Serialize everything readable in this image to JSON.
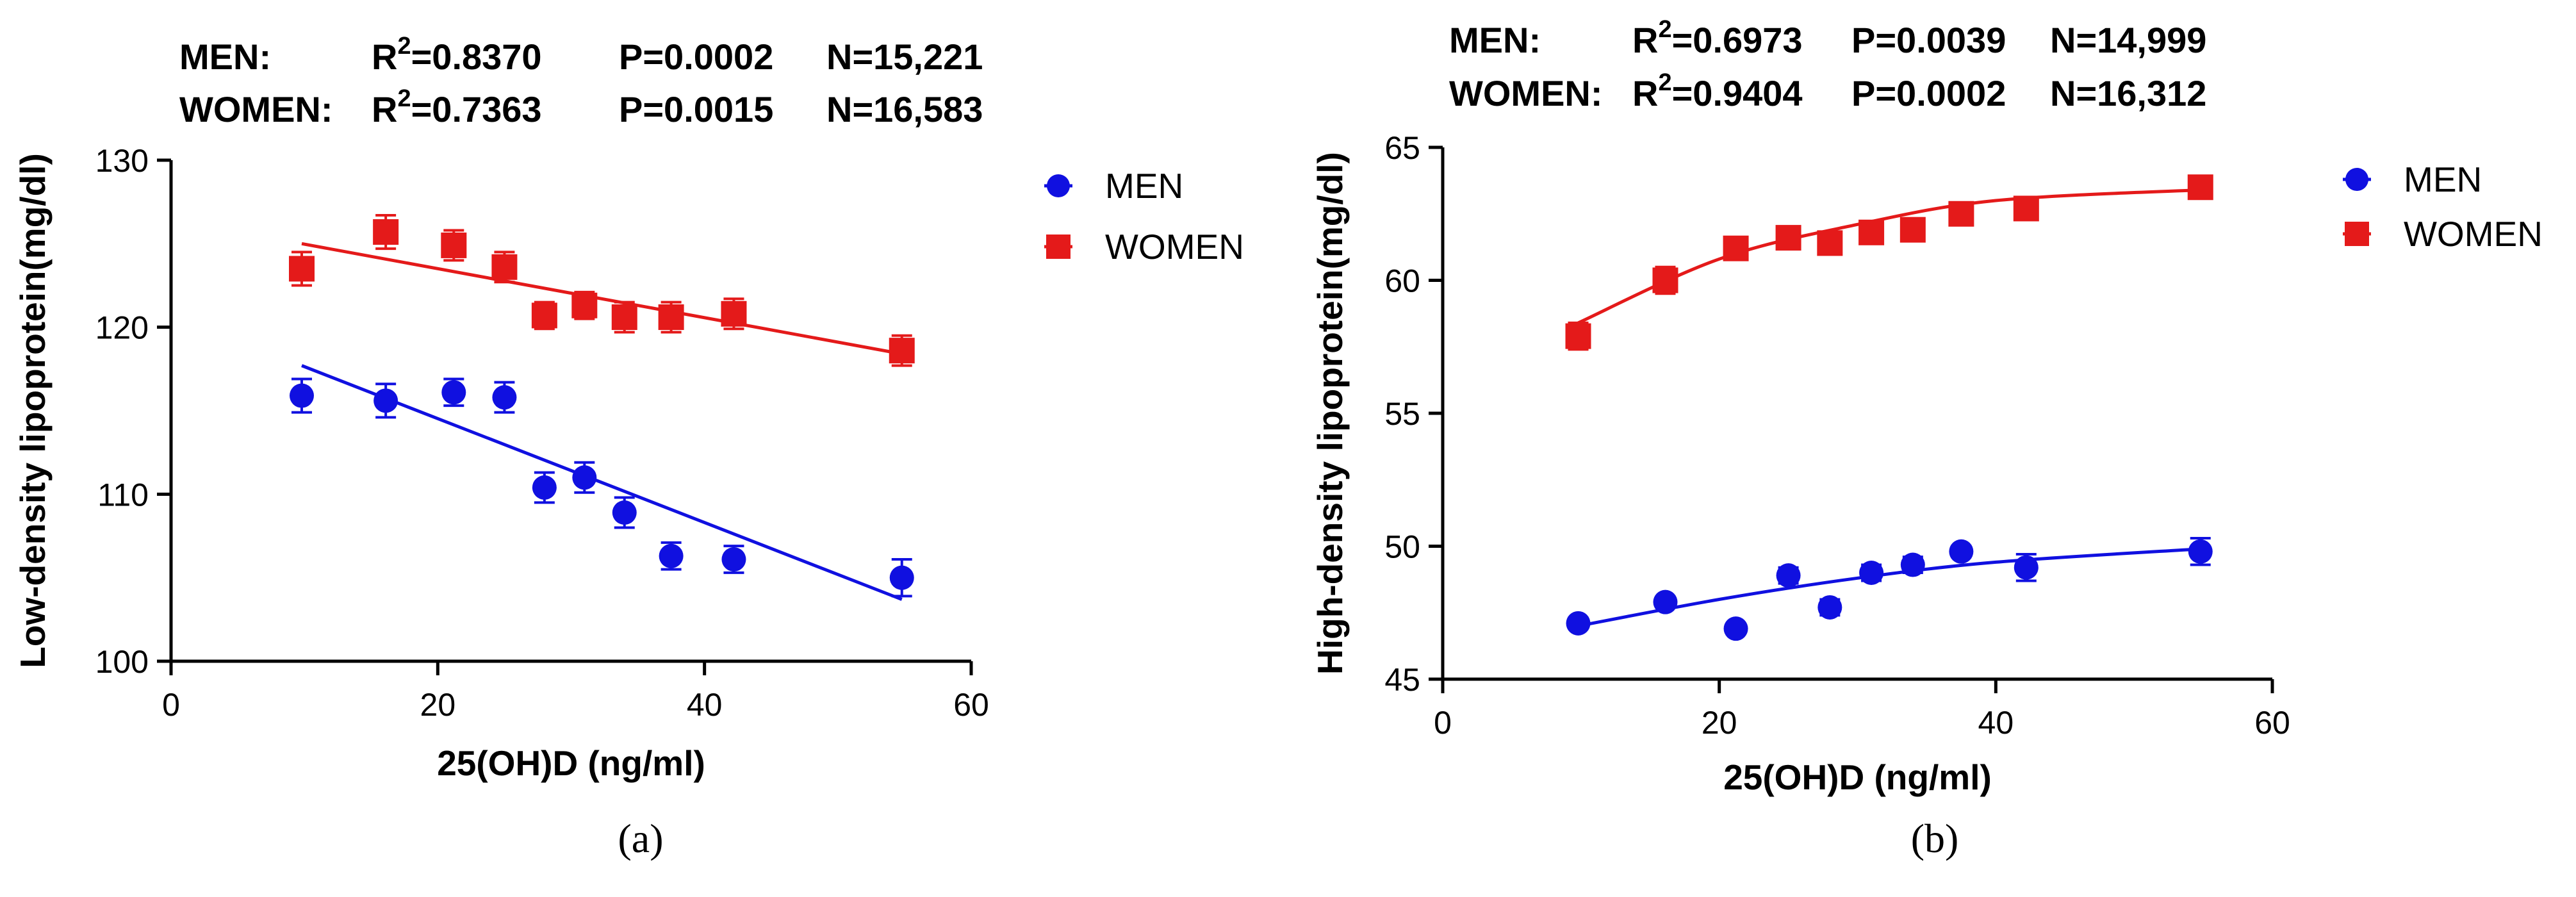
{
  "chart_data": [
    {
      "type": "scatter",
      "panel_label": "(a)",
      "stats": {
        "men": {
          "group_label": "MEN:",
          "r2_prefix": "R",
          "r2_exp": "2",
          "r2_value": "=0.8370",
          "p": "P=0.0002",
          "n": "N=15,221"
        },
        "women": {
          "group_label": "WOMEN:",
          "r2_prefix": "R",
          "r2_exp": "2",
          "r2_value": "=0.7363",
          "p": "P=0.0015",
          "n": "N=16,583"
        }
      },
      "xlabel": "25(OH)D (ng/ml)",
      "ylabel": "Low-density lipoprotein(mg/dl)",
      "xlim": [
        0,
        60
      ],
      "ylim": [
        100,
        130
      ],
      "xticks": [
        0,
        20,
        40,
        60
      ],
      "yticks": [
        100,
        110,
        120,
        130
      ],
      "legend_position": "right",
      "series": [
        {
          "name": "MEN",
          "color": "#1010e0",
          "marker": "circle",
          "x": [
            9.8,
            16.1,
            21.2,
            25.0,
            28.0,
            31.0,
            34.0,
            37.5,
            42.2,
            54.8
          ],
          "y": [
            115.9,
            115.6,
            116.1,
            115.8,
            110.4,
            111.0,
            108.9,
            106.3,
            106.1,
            105.0
          ],
          "err": [
            1.0,
            1.0,
            0.8,
            0.9,
            0.9,
            0.9,
            0.9,
            0.8,
            0.8,
            1.1
          ],
          "fit": {
            "kind": "linear",
            "x": [
              9.8,
              54.8
            ],
            "y": [
              117.7,
              103.7
            ]
          }
        },
        {
          "name": "WOMEN",
          "color": "#e41a1a",
          "marker": "square",
          "x": [
            9.8,
            16.1,
            21.2,
            25.0,
            28.0,
            31.0,
            34.0,
            37.5,
            42.2,
            54.8
          ],
          "y": [
            123.5,
            125.7,
            124.9,
            123.6,
            120.7,
            121.3,
            120.6,
            120.6,
            120.8,
            118.6
          ],
          "err": [
            1.0,
            1.0,
            0.9,
            0.9,
            0.8,
            0.8,
            0.9,
            0.9,
            0.9,
            0.9
          ],
          "fit": {
            "kind": "linear",
            "x": [
              9.8,
              54.8
            ],
            "y": [
              125.0,
              118.4
            ]
          }
        }
      ]
    },
    {
      "type": "scatter",
      "panel_label": "(b)",
      "stats": {
        "men": {
          "group_label": "MEN:",
          "r2_prefix": "R",
          "r2_exp": "2",
          "r2_value": "=0.6973",
          "p": "P=0.0039",
          "n": "N=14,999"
        },
        "women": {
          "group_label": "WOMEN:",
          "r2_prefix": "R",
          "r2_exp": "2",
          "r2_value": "=0.9404",
          "p": "P=0.0002",
          "n": "N=16,312"
        }
      },
      "xlabel": "25(OH)D (ng/ml)",
      "ylabel": "High-density lipoprotein(mg/dl)",
      "xlim": [
        0,
        60
      ],
      "ylim": [
        45,
        65
      ],
      "xticks": [
        0,
        20,
        40,
        60
      ],
      "yticks": [
        45,
        50,
        55,
        60,
        65
      ],
      "legend_position": "right",
      "series": [
        {
          "name": "MEN",
          "color": "#1010e0",
          "marker": "circle",
          "x": [
            9.8,
            16.1,
            21.2,
            25.0,
            28.0,
            31.0,
            34.0,
            37.5,
            42.2,
            54.8
          ],
          "y": [
            47.1,
            47.9,
            46.9,
            48.9,
            47.7,
            49.0,
            49.3,
            49.8,
            49.2,
            49.8
          ],
          "err": [
            0.2,
            0.2,
            0.2,
            0.3,
            0.3,
            0.3,
            0.3,
            0.2,
            0.5,
            0.5
          ],
          "fit": {
            "kind": "quadratic",
            "x": [
              9.8,
              20.0,
              30.0,
              40.0,
              54.8
            ],
            "y": [
              47.0,
              48.0,
              48.8,
              49.4,
              49.9
            ]
          }
        },
        {
          "name": "WOMEN",
          "color": "#e41a1a",
          "marker": "square",
          "x": [
            9.8,
            16.1,
            21.2,
            25.0,
            28.0,
            31.0,
            34.0,
            37.5,
            42.2,
            54.8
          ],
          "y": [
            57.9,
            60.0,
            61.2,
            61.6,
            61.4,
            61.8,
            61.9,
            62.5,
            62.7,
            63.5
          ],
          "err": [
            0.5,
            0.5,
            0.4,
            0.4,
            0.3,
            0.3,
            0.4,
            0.4,
            0.4,
            0.4
          ],
          "fit": {
            "kind": "quadratic",
            "x": [
              9.8,
              20.0,
              30.0,
              40.0,
              54.8
            ],
            "y": [
              58.4,
              60.8,
              62.1,
              63.0,
              63.4
            ]
          }
        }
      ]
    }
  ]
}
